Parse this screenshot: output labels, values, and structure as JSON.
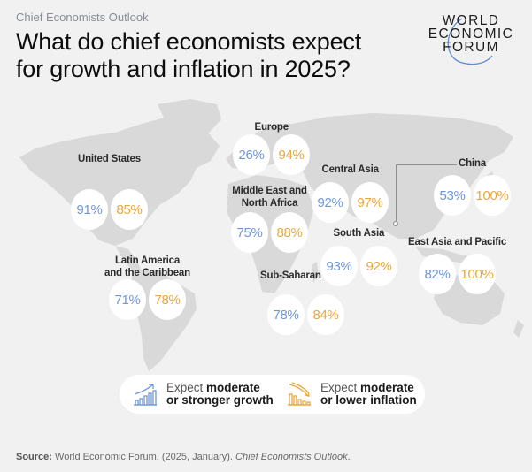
{
  "header": {
    "eyebrow": "Chief Economists Outlook",
    "title_line1": "What do chief economists expect",
    "title_line2": "for growth and inflation in 2025?"
  },
  "logo": {
    "line1": "WORLD",
    "line2": "ECONOMIC",
    "line3": "FORUM",
    "arc_color": "#5b8fd6"
  },
  "colors": {
    "growth": "#6f97d6",
    "inflation": "#e7a83c",
    "land": "#d9d9d9",
    "background": "#f1f1f1"
  },
  "regions": [
    {
      "name": "United States",
      "growth": "91%",
      "inflation": "85%"
    },
    {
      "name": "Latin America and the Caribbean",
      "name_line1": "Latin America",
      "name_line2": "and the Caribbean",
      "growth": "71%",
      "inflation": "78%"
    },
    {
      "name": "Europe",
      "growth": "26%",
      "inflation": "94%"
    },
    {
      "name": "Middle East and North Africa",
      "name_line1": "Middle East and",
      "name_line2": "North Africa",
      "growth": "75%",
      "inflation": "88%"
    },
    {
      "name": "Sub-Saharan Africa",
      "growth": "78%",
      "inflation": "84%"
    },
    {
      "name": "Central Asia",
      "growth": "92%",
      "inflation": "97%"
    },
    {
      "name": "South Asia",
      "growth": "93%",
      "inflation": "92%"
    },
    {
      "name": "China",
      "growth": "53%",
      "inflation": "100%"
    },
    {
      "name": "East Asia and Pacific",
      "growth": "82%",
      "inflation": "100%"
    }
  ],
  "legend": {
    "growth": {
      "light": "Expect",
      "bold1": "moderate",
      "bold2": "or stronger growth",
      "icon": "growth-chart-icon"
    },
    "inflation": {
      "light": "Expect",
      "bold1": "moderate",
      "bold2": "or lower inflation",
      "icon": "declining-chart-icon"
    }
  },
  "source": {
    "label": "Source:",
    "text": "World Economic Forum. (2025, January).",
    "publication": "Chief Economists Outlook",
    "end": "."
  }
}
